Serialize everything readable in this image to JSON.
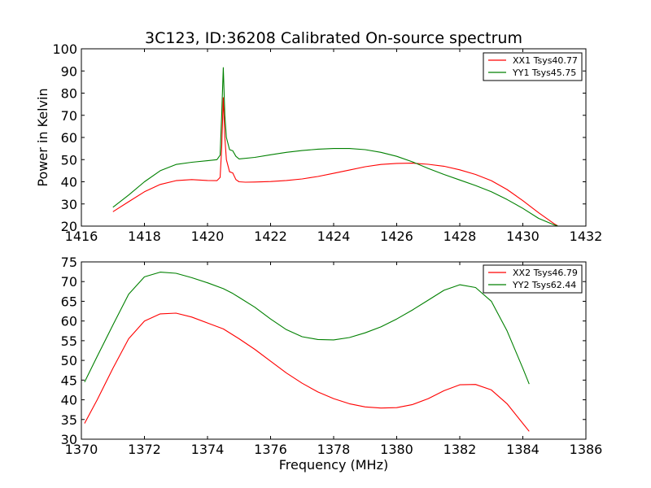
{
  "title": "3C123, ID:36208 Calibrated On-source spectrum",
  "ylabel": "Power in Kelvin",
  "xlabel": "Frequency (MHz)",
  "colors": {
    "red": "#ff0000",
    "green": "#008000"
  },
  "chart_data": [
    {
      "type": "line",
      "xlim": [
        1416,
        1432
      ],
      "ylim": [
        20,
        100
      ],
      "xticks": [
        "1416",
        "1418",
        "1420",
        "1422",
        "1424",
        "1426",
        "1428",
        "1430",
        "1432"
      ],
      "yticks": [
        "20",
        "30",
        "40",
        "50",
        "60",
        "70",
        "80",
        "90",
        "100"
      ],
      "legend_position": "top-right",
      "series": [
        {
          "name": "XX1 Tsys40.77",
          "color": "#ff0000",
          "x": [
            1417,
            1417.5,
            1418,
            1418.5,
            1419,
            1419.5,
            1420,
            1420.3,
            1420.4,
            1420.45,
            1420.5,
            1420.55,
            1420.6,
            1420.7,
            1420.8,
            1420.9,
            1421,
            1421.2,
            1421.5,
            1422,
            1422.5,
            1423,
            1423.5,
            1424,
            1424.5,
            1425,
            1425.5,
            1426,
            1426.5,
            1427,
            1427.5,
            1428,
            1428.5,
            1429,
            1429.5,
            1430,
            1430.5,
            1431,
            1431.1
          ],
          "y": [
            26.5,
            31,
            35.5,
            38.8,
            40.5,
            41,
            40.6,
            40.5,
            42,
            55,
            78,
            60,
            50,
            44.5,
            44,
            41,
            40,
            39.8,
            39.9,
            40.1,
            40.6,
            41.3,
            42.4,
            43.8,
            45.3,
            46.8,
            47.8,
            48.3,
            48.4,
            47.9,
            47,
            45.4,
            43.3,
            40.5,
            36.5,
            31.5,
            26,
            21,
            20.2
          ]
        },
        {
          "name": "YY1 Tsys45.75",
          "color": "#008000",
          "x": [
            1417,
            1417.5,
            1418,
            1418.5,
            1419,
            1419.5,
            1420,
            1420.3,
            1420.4,
            1420.45,
            1420.5,
            1420.55,
            1420.6,
            1420.7,
            1420.8,
            1420.9,
            1421,
            1421.5,
            1422,
            1422.5,
            1423,
            1423.5,
            1424,
            1424.5,
            1425,
            1425.5,
            1426,
            1426.5,
            1427,
            1427.5,
            1428,
            1428.5,
            1429,
            1429.5,
            1430,
            1430.5,
            1431,
            1431.1
          ],
          "y": [
            28.5,
            34,
            40,
            45,
            47.8,
            48.8,
            49.5,
            50,
            52,
            70,
            91.5,
            70,
            60,
            54.5,
            54,
            51.5,
            50.3,
            51,
            52.2,
            53.3,
            54.1,
            54.7,
            55,
            55,
            54.5,
            53.3,
            51.5,
            49,
            46,
            43.3,
            40.8,
            38.3,
            35.5,
            32,
            28,
            23.5,
            20.5,
            20.2
          ]
        }
      ]
    },
    {
      "type": "line",
      "xlim": [
        1370,
        1386
      ],
      "ylim": [
        30,
        75
      ],
      "xticks": [
        "1370",
        "1372",
        "1374",
        "1376",
        "1378",
        "1380",
        "1382",
        "1384",
        "1386"
      ],
      "yticks": [
        "30",
        "35",
        "40",
        "45",
        "50",
        "55",
        "60",
        "65",
        "70",
        "75"
      ],
      "legend_position": "top-right",
      "series": [
        {
          "name": "XX2 Tsys46.79",
          "color": "#ff0000",
          "x": [
            1370.1,
            1370.5,
            1371,
            1371.5,
            1372,
            1372.5,
            1373,
            1373.5,
            1374,
            1374.5,
            1374.8,
            1375,
            1375.5,
            1376,
            1376.5,
            1377,
            1377.5,
            1378,
            1378.5,
            1379,
            1379.5,
            1380,
            1380.5,
            1381,
            1381.5,
            1382,
            1382.5,
            1383,
            1383.5,
            1384,
            1384.2
          ],
          "y": [
            34,
            40,
            48,
            55.5,
            60,
            61.8,
            62,
            61,
            59.5,
            58,
            56.5,
            55.5,
            52.8,
            49.8,
            46.8,
            44.2,
            42,
            40.3,
            39,
            38.2,
            37.9,
            38,
            38.8,
            40.3,
            42.3,
            43.8,
            43.9,
            42.5,
            39,
            34,
            32
          ]
        },
        {
          "name": "YY2 Tsys62.44",
          "color": "#008000",
          "x": [
            1370.1,
            1370.5,
            1371,
            1371.5,
            1372,
            1372.5,
            1373,
            1373.5,
            1374,
            1374.5,
            1374.8,
            1375,
            1375.5,
            1376,
            1376.5,
            1377,
            1377.5,
            1378,
            1378.5,
            1379,
            1379.5,
            1380,
            1380.5,
            1381,
            1381.5,
            1382,
            1382.5,
            1383,
            1383.5,
            1384,
            1384.2
          ],
          "y": [
            44.5,
            51,
            59,
            66.8,
            71.2,
            72.4,
            72.1,
            71,
            69.7,
            68.2,
            67,
            66,
            63.5,
            60.5,
            57.8,
            56,
            55.3,
            55.2,
            55.8,
            57,
            58.5,
            60.5,
            62.8,
            65.3,
            67.8,
            69.2,
            68.5,
            65,
            57.5,
            48,
            44
          ]
        }
      ]
    }
  ]
}
